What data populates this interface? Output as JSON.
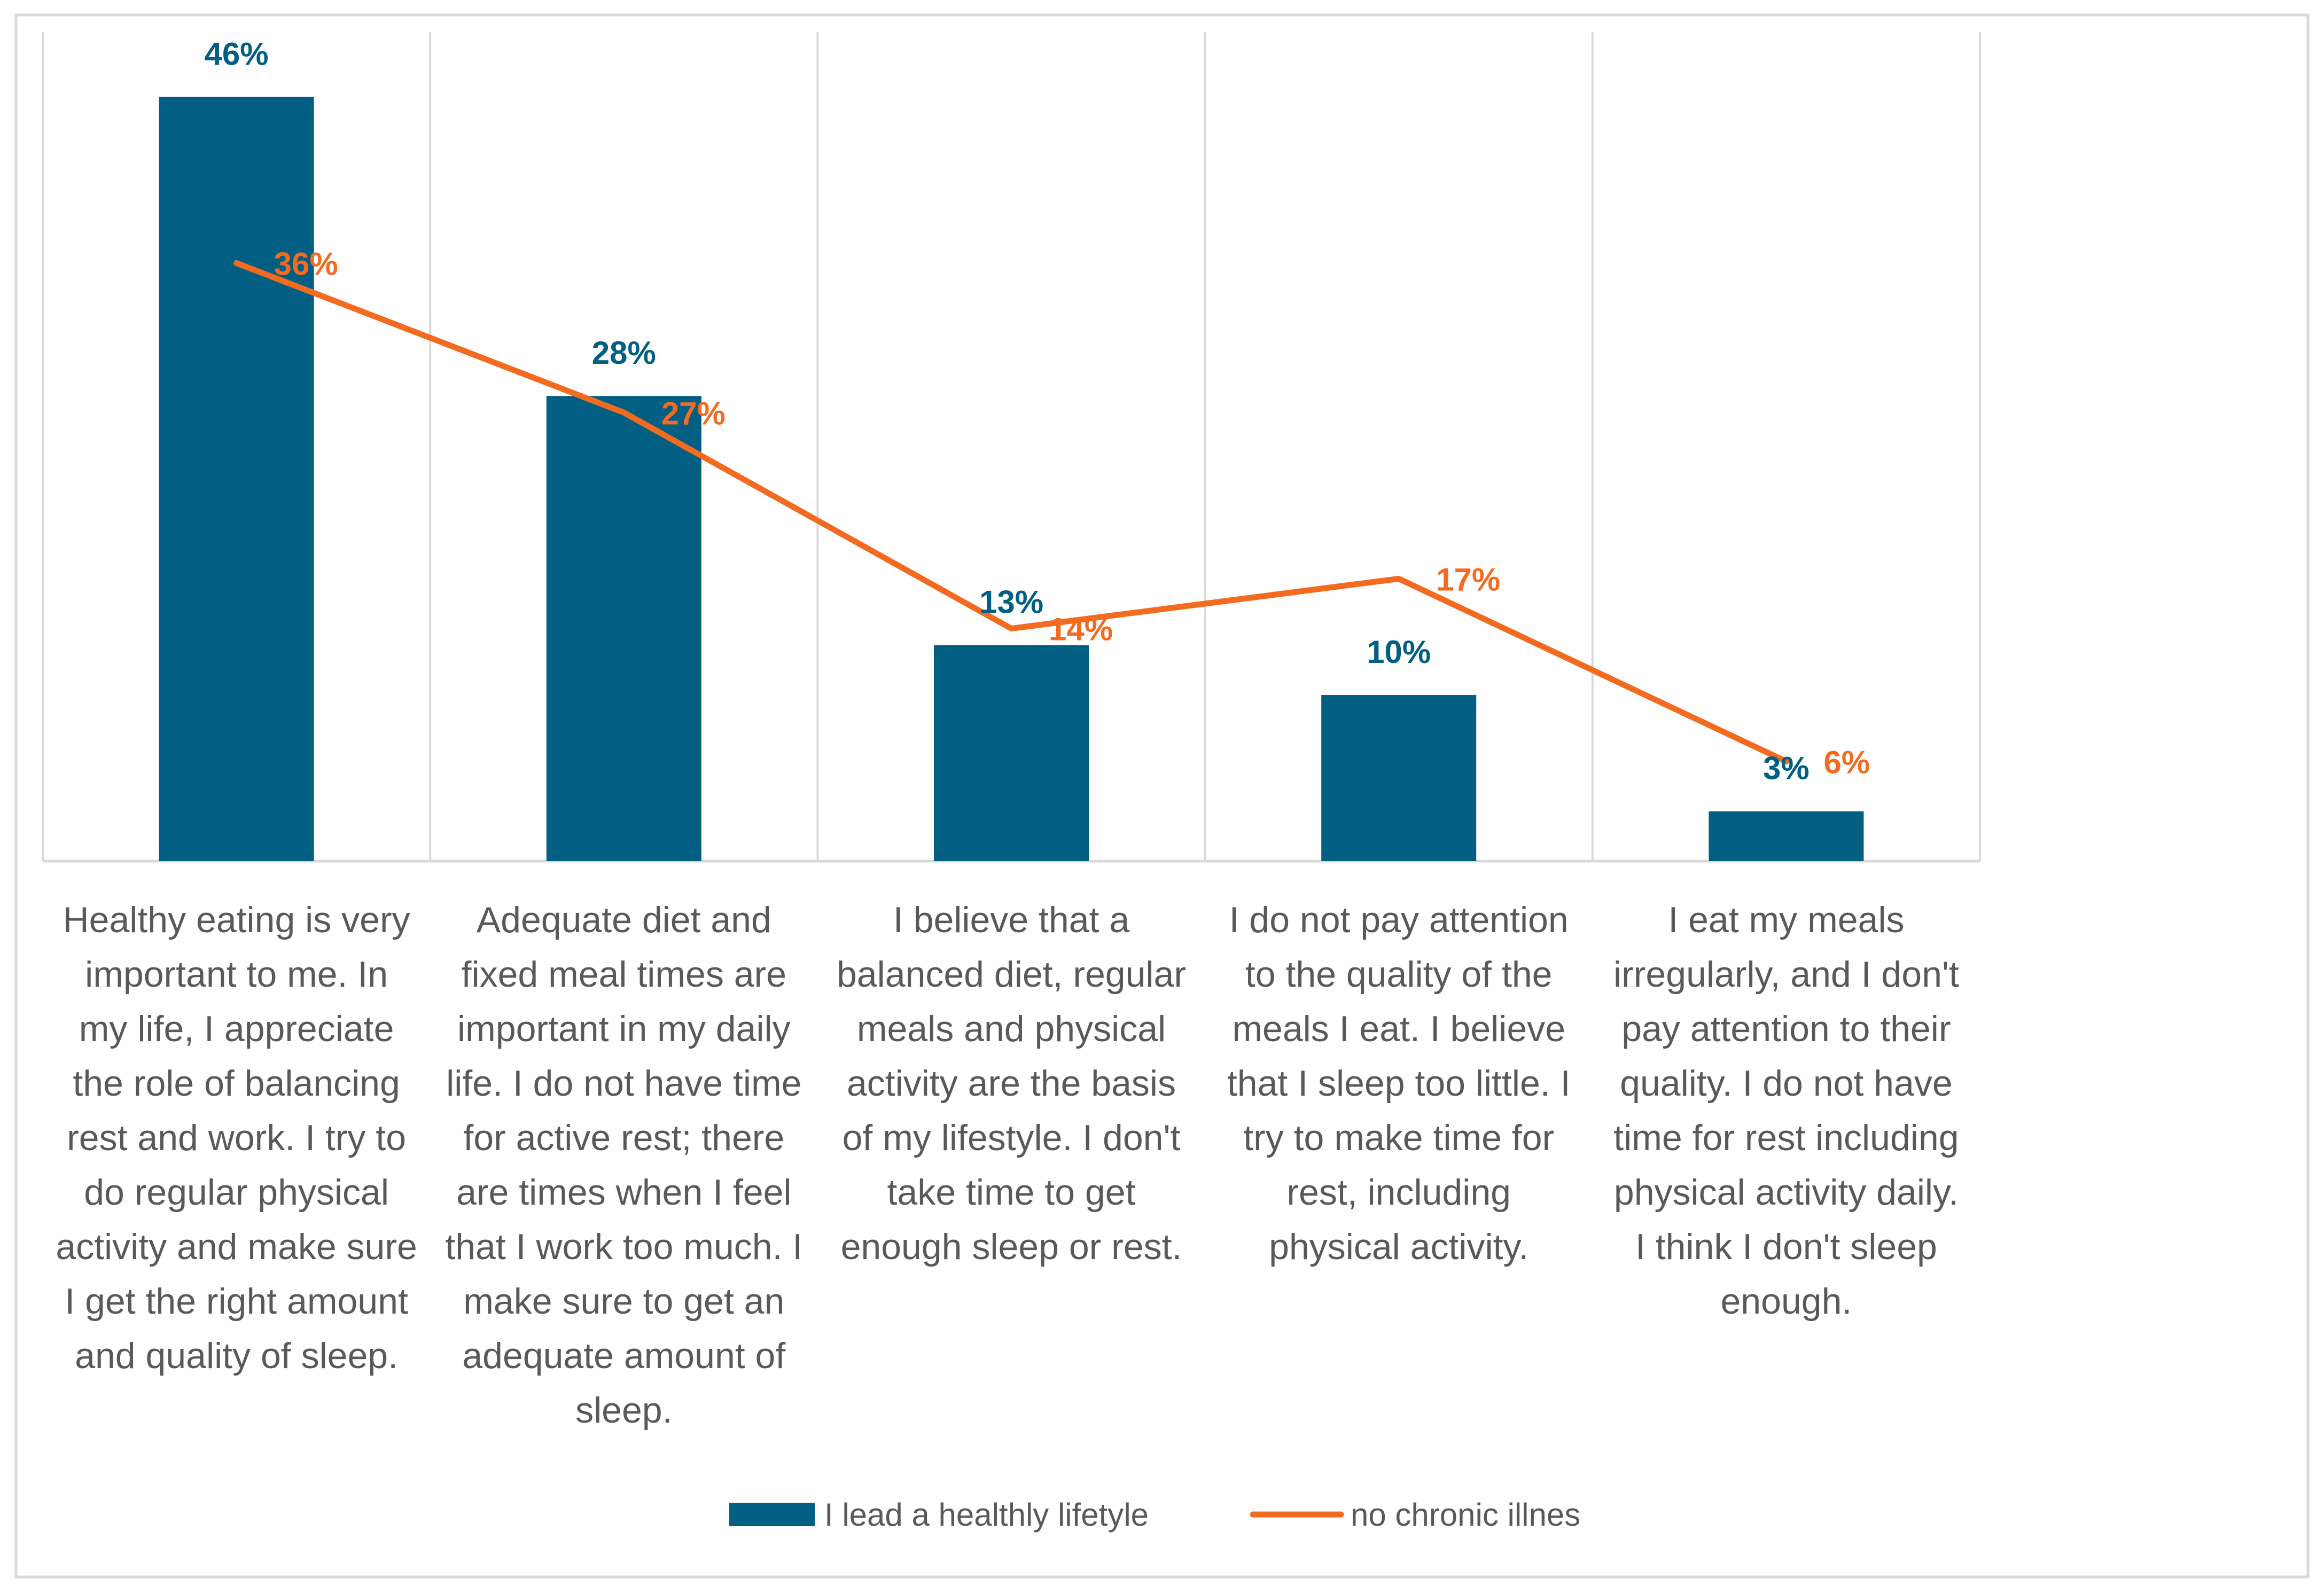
{
  "chart_data": {
    "type": "bar",
    "title": "",
    "xlabel": "",
    "ylabel": "",
    "ylim": [
      0,
      50
    ],
    "grid": "vertical category dividers",
    "legend_position": "bottom",
    "colors": {
      "bars": "#005F82",
      "line": "#F26B21",
      "axis": "#D9D9D9",
      "text": "#595959"
    },
    "categories": [
      [
        "Healthy eating is very",
        "important to me. In",
        "my life, I appreciate",
        "the role of balancing",
        "rest and work. I try to",
        "do regular physical",
        "activity and make sure",
        "I get the right amount",
        "and quality of sleep."
      ],
      [
        "Adequate diet and",
        "fixed meal times are",
        "important in my daily",
        "life. I do not have time",
        "for active rest; there",
        "are times when I feel",
        "that I work too much. I",
        "make sure to get an",
        "adequate amount of",
        "sleep."
      ],
      [
        "I believe that a",
        "balanced diet, regular",
        "meals and physical",
        "activity are the basis",
        "of my lifestyle. I don't",
        "take time to get",
        "enough sleep or rest."
      ],
      [
        "I do not pay attention",
        "to the quality of the",
        "meals I eat. I believe",
        "that I sleep too little. I",
        "try to make time for",
        "rest, including",
        "physical activity."
      ],
      [
        "I eat my meals",
        "irregularly, and I don't",
        "pay attention to their",
        "quality. I do not have",
        "time for rest including",
        "physical activity daily.",
        "I think I don't sleep",
        "enough."
      ]
    ],
    "series": [
      {
        "name": "I lead a healthly lifetyle",
        "kind": "bar",
        "values": [
          46,
          28,
          13,
          10,
          3
        ],
        "labels": [
          "46%",
          "28%",
          "13%",
          "10%",
          "3%"
        ]
      },
      {
        "name": "no chronic illnes",
        "kind": "line",
        "values": [
          36,
          27,
          14,
          17,
          6
        ],
        "labels": [
          "36%",
          "27%",
          "14%",
          "17%",
          "6%"
        ]
      }
    ]
  }
}
